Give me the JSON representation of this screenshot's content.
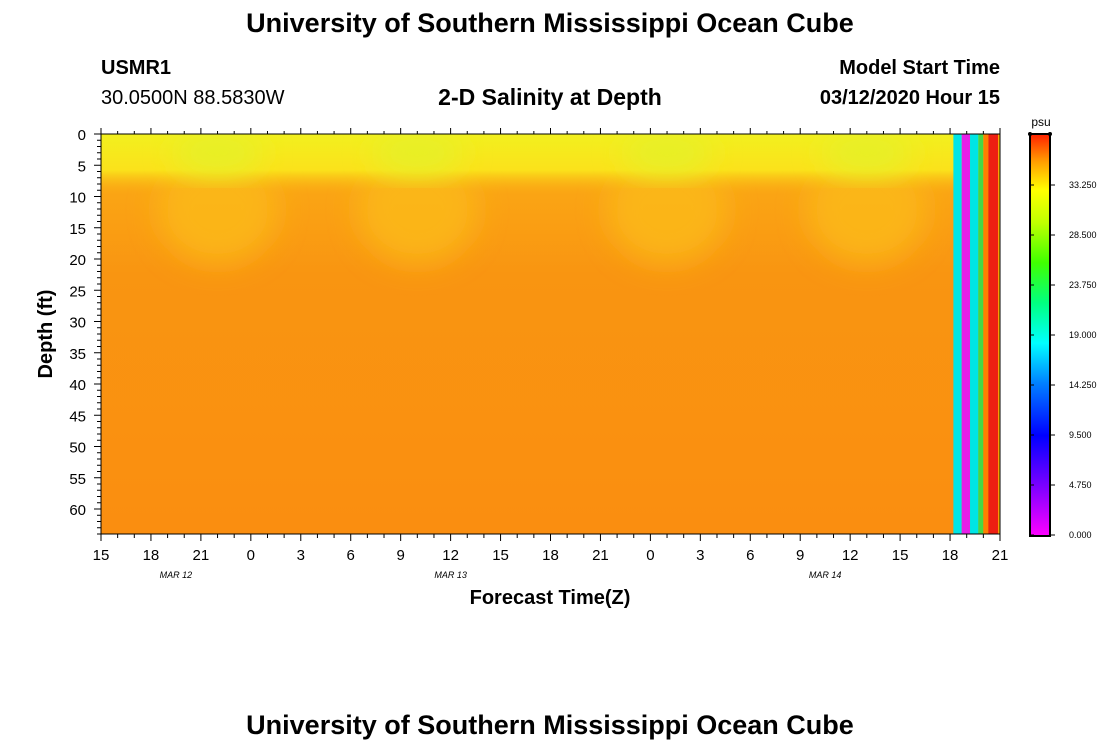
{
  "page": {
    "title": "University of Southern Mississippi Ocean Cube",
    "footer_title": "University of Southern Mississippi Ocean Cube",
    "station": {
      "id": "USMR1",
      "coords": "30.0500N 88.5830W"
    },
    "model_start": {
      "label": "Model Start Time",
      "value": "03/12/2020 Hour 15"
    }
  },
  "chart_data": {
    "type": "heatmap",
    "title": "2-D Salinity at Depth",
    "xlabel": "Forecast Time(Z)",
    "ylabel": "Depth (ft)",
    "x_ticks": [
      "15",
      "18",
      "21",
      "0",
      "3",
      "6",
      "9",
      "12",
      "15",
      "18",
      "21",
      "0",
      "3",
      "6",
      "9",
      "12",
      "15",
      "18",
      "21"
    ],
    "x_hours": [
      0,
      3,
      6,
      9,
      12,
      15,
      18,
      21,
      24,
      27,
      30,
      33,
      36,
      39,
      42,
      45,
      48,
      51,
      54
    ],
    "x_range_hours": [
      0,
      54
    ],
    "date_labels": [
      {
        "text": "MAR 12",
        "hour": 4.5
      },
      {
        "text": "MAR 13",
        "hour": 21
      },
      {
        "text": "MAR 14",
        "hour": 43.5
      }
    ],
    "y_ticks": [
      0,
      5,
      10,
      15,
      20,
      25,
      30,
      35,
      40,
      45,
      50,
      55,
      60
    ],
    "y_range_ft": [
      0,
      64
    ],
    "colorbar": {
      "unit": "psu",
      "ticks": [
        "33.250",
        "28.500",
        "23.750",
        "19.000",
        "14.250",
        "9.500",
        "4.750",
        "0.000"
      ],
      "tick_values": [
        33.25,
        28.5,
        23.75,
        19.0,
        14.25,
        9.5,
        4.75,
        0.0
      ],
      "range": [
        0,
        38
      ]
    },
    "field_summary": {
      "surface_psu": 27.5,
      "deep_psu": 32.5,
      "surface_fresh_hours": [
        7,
        19,
        34,
        46
      ]
    },
    "end_bands": [
      {
        "hour_start": 51.2,
        "hour_end": 51.7,
        "color": "#00e5e5"
      },
      {
        "hour_start": 51.7,
        "hour_end": 52.2,
        "color": "#e81ee8"
      },
      {
        "hour_start": 52.2,
        "hour_end": 52.7,
        "color": "#00e5e5"
      },
      {
        "hour_start": 52.7,
        "hour_end": 53.0,
        "color": "#46d846"
      },
      {
        "hour_start": 53.0,
        "hour_end": 53.3,
        "color": "#ff7f00"
      },
      {
        "hour_start": 53.3,
        "hour_end": 53.9,
        "color": "#ee1f12"
      },
      {
        "hour_start": 53.9,
        "hour_end": 54.0,
        "color": "#ffc400"
      }
    ]
  }
}
